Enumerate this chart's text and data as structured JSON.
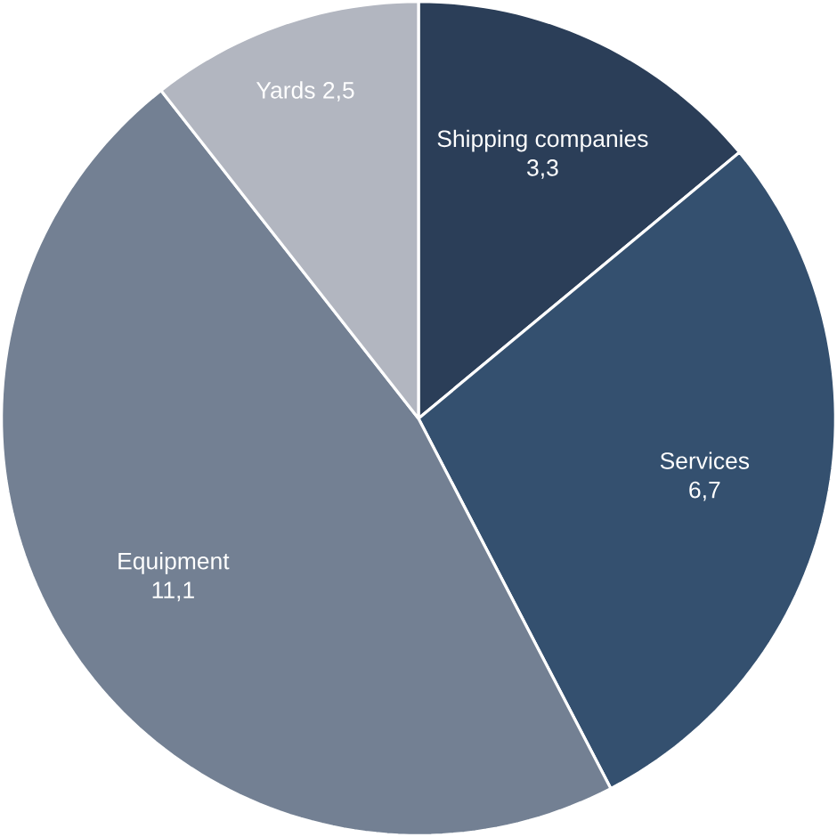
{
  "chart_data": {
    "type": "pie",
    "categories": [
      "Shipping companies",
      "Services",
      "Equipment",
      "Yards"
    ],
    "values": [
      3.3,
      6.7,
      11.1,
      2.5
    ],
    "value_labels": [
      "3,3",
      "6,7",
      "11,1",
      "2,5"
    ],
    "colors": [
      "#2b3e58",
      "#34506f",
      "#738093",
      "#b2b6c0"
    ]
  }
}
